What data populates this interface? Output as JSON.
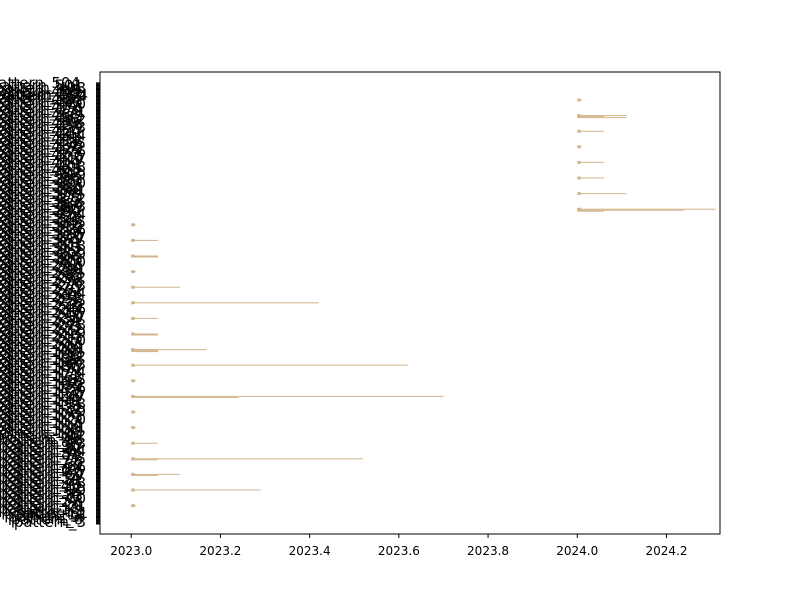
{
  "chart_data": {
    "type": "bar",
    "orientation": "horizontal",
    "title": "",
    "xlabel": "",
    "ylabel": "",
    "xlim": [
      2022.93,
      2024.32
    ],
    "x_ticks": [
      2023.0,
      2023.2,
      2023.4,
      2023.6,
      2023.8,
      2024.0,
      2024.2
    ],
    "x_tick_labels": [
      "2023.0",
      "2023.2",
      "2023.4",
      "2023.6",
      "2023.8",
      "2024.0",
      "2024.2"
    ],
    "grid": false,
    "legend": "none",
    "bar_color": "#d2b48c",
    "category_label_prefix": "pattern_",
    "first_category_label": "pattern_1",
    "last_category_label": "pattern_504",
    "category_count": 504,
    "bar_groups": [
      {
        "start_year": 2024.0,
        "rows": [
          {
            "end_offset": 0.01,
            "extra": []
          },
          {
            "end_offset": 0.11,
            "extra": [
              0.06,
              0.11
            ]
          },
          {
            "end_offset": 0.06,
            "extra": []
          },
          {
            "end_offset": 0.01,
            "extra": []
          },
          {
            "end_offset": 0.06,
            "extra": []
          },
          {
            "end_offset": 0.06,
            "extra": []
          },
          {
            "end_offset": 0.11,
            "extra": []
          },
          {
            "end_offset": 0.31,
            "extra": [
              0.24,
              0.06
            ]
          }
        ]
      },
      {
        "start_year": 2023.0,
        "rows": [
          {
            "end_offset": 0.01,
            "extra": []
          },
          {
            "end_offset": 0.06,
            "extra": []
          },
          {
            "end_offset": 0.06,
            "extra": [
              0.06
            ]
          },
          {
            "end_offset": 0.01,
            "extra": []
          },
          {
            "end_offset": 0.11,
            "extra": []
          },
          {
            "end_offset": 0.42,
            "extra": []
          },
          {
            "end_offset": 0.06,
            "extra": []
          },
          {
            "end_offset": 0.06,
            "extra": [
              0.06
            ]
          },
          {
            "end_offset": 0.17,
            "extra": [
              0.06,
              0.06
            ]
          },
          {
            "end_offset": 0.62,
            "extra": []
          },
          {
            "end_offset": 0.01,
            "extra": []
          },
          {
            "end_offset": 0.7,
            "extra": [
              0.24
            ]
          },
          {
            "end_offset": 0.01,
            "extra": []
          },
          {
            "end_offset": 0.01,
            "extra": []
          },
          {
            "end_offset": 0.06,
            "extra": []
          },
          {
            "end_offset": 0.52,
            "extra": [
              0.06
            ]
          },
          {
            "end_offset": 0.11,
            "extra": [
              0.06
            ]
          },
          {
            "end_offset": 0.29,
            "extra": []
          },
          {
            "end_offset": 0.01,
            "extra": []
          }
        ]
      }
    ]
  }
}
